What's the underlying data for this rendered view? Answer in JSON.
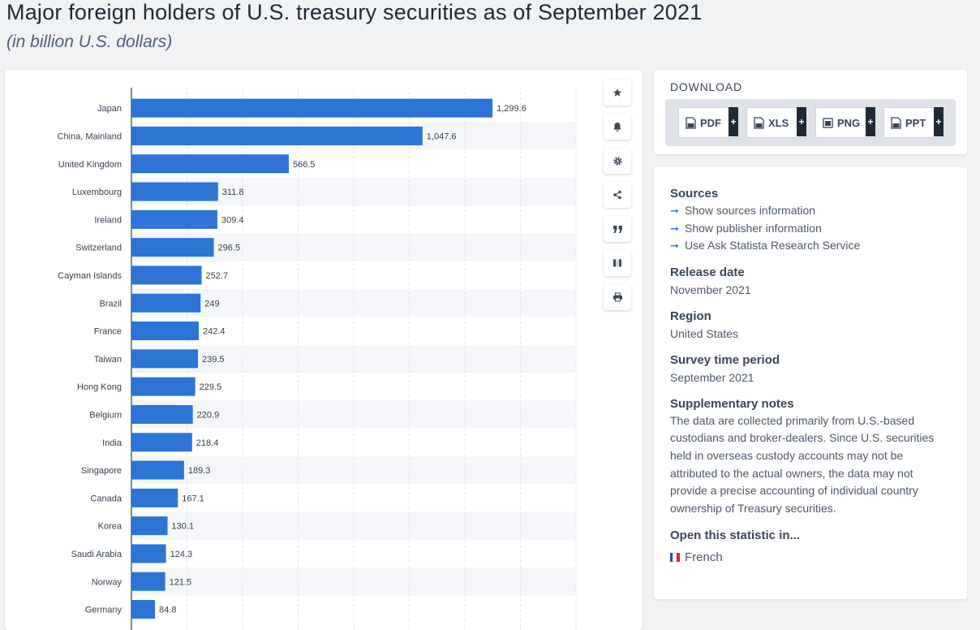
{
  "header": {
    "title": "Major foreign holders of U.S. treasury securities as of September 2021",
    "subtitle": "(in billion U.S. dollars)"
  },
  "chart_data": {
    "type": "bar",
    "orientation": "horizontal",
    "categories": [
      "Japan",
      "China, Mainland",
      "United Kingdom",
      "Luxembourg",
      "Ireland",
      "Switzerland",
      "Cayman Islands",
      "Brazil",
      "France",
      "Taiwan",
      "Hong Kong",
      "Belgium",
      "India",
      "Singapore",
      "Canada",
      "Korea",
      "Saudi Arabia",
      "Norway",
      "Germany"
    ],
    "values": [
      1299.6,
      1047.6,
      566.5,
      311.8,
      309.4,
      296.5,
      252.7,
      249,
      242.4,
      239.5,
      229.5,
      220.9,
      218.4,
      189.3,
      167.1,
      130.1,
      124.3,
      121.5,
      84.8
    ],
    "value_labels": [
      "1,299.6",
      "1,047.6",
      "566.5",
      "311.8",
      "309.4",
      "296.5",
      "252.7",
      "249",
      "242.4",
      "239.5",
      "229.5",
      "220.9",
      "218.4",
      "189.3",
      "167.1",
      "130.1",
      "124.3",
      "121.5",
      "84.8"
    ],
    "xlim": [
      0,
      1600
    ],
    "grid_step": 200,
    "grid": true,
    "bar_color": "#2c74d6",
    "alt_row_color": "#f4f6f9"
  },
  "toolbar": {
    "buttons": [
      {
        "name": "star-icon"
      },
      {
        "name": "bell-icon"
      },
      {
        "name": "gear-icon"
      },
      {
        "name": "share-icon"
      },
      {
        "name": "quote-icon"
      },
      {
        "name": "flag-icon"
      },
      {
        "name": "print-icon"
      }
    ]
  },
  "download": {
    "title": "DOWNLOAD",
    "buttons": [
      {
        "label": "PDF",
        "plus": "+"
      },
      {
        "label": "XLS",
        "plus": "+"
      },
      {
        "label": "PNG",
        "plus": "+"
      },
      {
        "label": "PPT",
        "plus": "+"
      }
    ]
  },
  "info": {
    "sources_heading": "Sources",
    "source_links": [
      "Show sources information",
      "Show publisher information",
      "Use Ask Statista Research Service"
    ],
    "release_heading": "Release date",
    "release_value": "November 2021",
    "region_heading": "Region",
    "region_value": "United States",
    "survey_heading": "Survey time period",
    "survey_value": "September 2021",
    "notes_heading": "Supplementary notes",
    "notes_lines": [
      "The data are collected primarily from U.S.-based",
      "custodians and broker-dealers. Since U.S. securities",
      "held in overseas custody accounts may not be",
      "attributed to the actual owners, the data may not",
      "provide a precise accounting of individual country",
      "ownership of Treasury securities."
    ],
    "open_heading": "Open this statistic in...",
    "language": "French"
  },
  "colors": {
    "accent": "#2a6fdb",
    "flag_blue": "#2b4f9e",
    "flag_white": "#ffffff",
    "flag_red": "#d7263d"
  }
}
